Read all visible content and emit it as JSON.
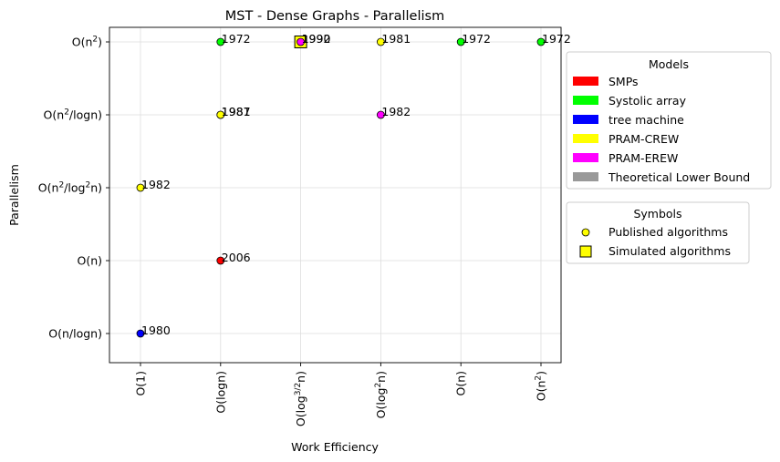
{
  "chart_data": {
    "type": "scatter",
    "title": "MST - Dense Graphs - Parallelism",
    "xlabel": "Work Efficiency",
    "ylabel": "Parallelism",
    "x_categories": [
      "O(1)",
      "O(logn)",
      "O(log^{3/2}n)",
      "O(log^{2}n)",
      "O(n)",
      "O(n^{2})"
    ],
    "y_categories": [
      "O(n/logn)",
      "O(n)",
      "O(n^{2}/log^{2}n)",
      "O(n^{2}/logn)",
      "O(n^{2})"
    ],
    "grid": true,
    "points": [
      {
        "x": "O(1)",
        "y": "O(n/logn)",
        "year": "1980",
        "model": "tree machine",
        "symbol": "Published algorithms"
      },
      {
        "x": "O(1)",
        "y": "O(n^{2}/log^{2}n)",
        "year": "1982",
        "model": "PRAM-CREW",
        "symbol": "Published algorithms"
      },
      {
        "x": "O(logn)",
        "y": "O(n)",
        "year": "2006",
        "model": "SMPs",
        "symbol": "Published algorithms"
      },
      {
        "x": "O(logn)",
        "y": "O(n^{2}/logn)",
        "year": "1987",
        "model": "PRAM-CREW",
        "symbol": "Published algorithms"
      },
      {
        "x": "O(logn)",
        "y": "O(n^{2}/logn)",
        "year": "1981",
        "model": "PRAM-CREW",
        "symbol": "Published algorithms"
      },
      {
        "x": "O(logn)",
        "y": "O(n^{2})",
        "year": "1972",
        "model": "Systolic array",
        "symbol": "Published algorithms"
      },
      {
        "x": "O(log^{3/2}n)",
        "y": "O(n^{2})",
        "year": "1992",
        "model": "PRAM-CREW",
        "symbol": "Simulated algorithms"
      },
      {
        "x": "O(log^{3/2}n)",
        "y": "O(n^{2})",
        "year": "1990",
        "model": "PRAM-EREW",
        "symbol": "Published algorithms"
      },
      {
        "x": "O(log^{2}n)",
        "y": "O(n^{2}/logn)",
        "year": "1982",
        "model": "PRAM-EREW",
        "symbol": "Published algorithms"
      },
      {
        "x": "O(log^{2}n)",
        "y": "O(n^{2})",
        "year": "1981",
        "model": "PRAM-CREW",
        "symbol": "Published algorithms"
      },
      {
        "x": "O(n)",
        "y": "O(n^{2})",
        "year": "1972",
        "model": "Systolic array",
        "symbol": "Published algorithms"
      },
      {
        "x": "O(n^{2})",
        "y": "O(n^{2})",
        "year": "1972",
        "model": "Systolic array",
        "symbol": "Published algorithms"
      }
    ],
    "legend_models": {
      "title": "Models",
      "placement": "right",
      "entries": [
        {
          "label": "SMPs",
          "color": "#ff0000"
        },
        {
          "label": "Systolic array",
          "color": "#00ff00"
        },
        {
          "label": "tree machine",
          "color": "#0000ff"
        },
        {
          "label": "PRAM-CREW",
          "color": "#ffff00"
        },
        {
          "label": "PRAM-EREW",
          "color": "#ff00ff"
        },
        {
          "label": "Theoretical Lower Bound",
          "color": "#999999"
        }
      ]
    },
    "legend_symbols": {
      "title": "Symbols",
      "placement": "right",
      "entries": [
        {
          "label": "Published algorithms",
          "shape": "circle"
        },
        {
          "label": "Simulated algorithms",
          "shape": "square"
        }
      ]
    }
  }
}
